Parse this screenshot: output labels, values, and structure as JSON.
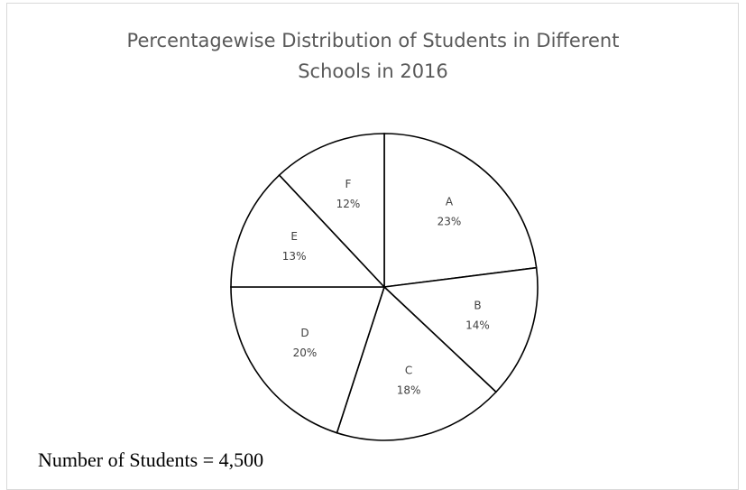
{
  "chart_data": {
    "type": "pie",
    "title": "Percentagewise Distribution of Students in Different Schools in 2016",
    "title_lines": [
      "Percentagewise Distribution of Students in Different",
      "Schools in 2016"
    ],
    "categories": [
      "A",
      "B",
      "C",
      "D",
      "E",
      "F"
    ],
    "values": [
      23,
      14,
      18,
      20,
      13,
      12
    ],
    "value_labels": [
      "23%",
      "14%",
      "18%",
      "20%",
      "13%",
      "12%"
    ],
    "unit": "%",
    "legend": "none",
    "slice_fill": "#ffffff",
    "slice_stroke": "#000000"
  },
  "footnote": "Number of Students = 4,500"
}
